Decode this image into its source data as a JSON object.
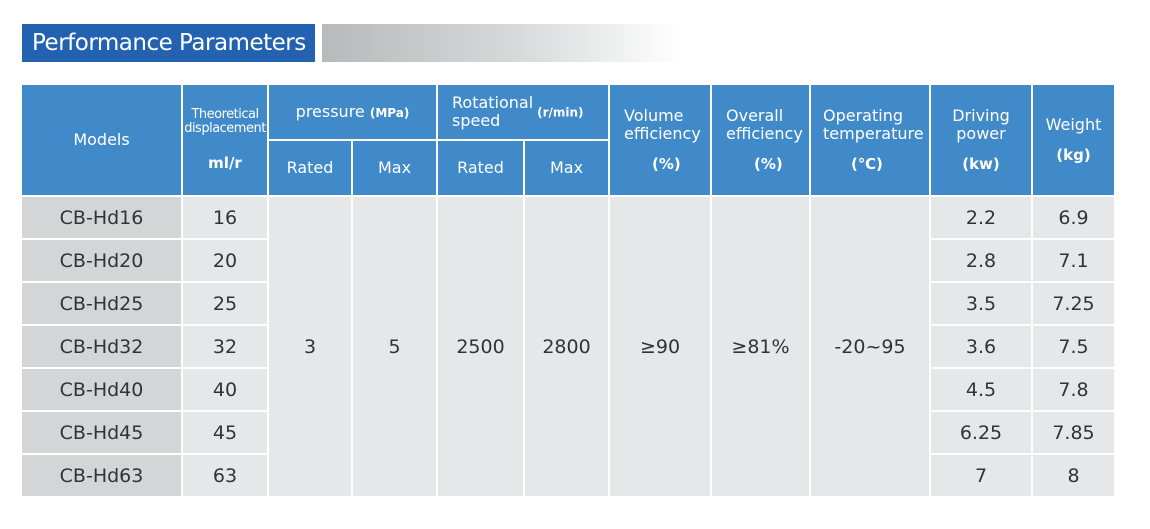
{
  "title": "Performance Parameters",
  "colors": {
    "header": "#418ac9",
    "title_bg": "#2262b0",
    "cell": "#e6e7e8",
    "model_cell": "#d4d5d6"
  },
  "headers": {
    "models": "Models",
    "displacement": "Theoretical displacement",
    "displacement_unit": "ml/r",
    "pressure": "pressure",
    "pressure_unit": "(MPa)",
    "speed": "Rotational speed",
    "speed_unit": "(r/min)",
    "rated": "Rated",
    "max": "Max",
    "volume_eff": "Volume efficiency",
    "volume_eff_unit": "(%)",
    "overall_eff": "Overall efficiency",
    "overall_eff_unit": "(%)",
    "temp": "Operating temperature",
    "temp_unit": "(℃)",
    "power": "Driving power",
    "power_unit": "(kw)",
    "weight": "Weight",
    "weight_unit": "(kg)"
  },
  "shared": {
    "pressure_rated": "3",
    "pressure_max": "5",
    "speed_rated": "2500",
    "speed_max": "2800",
    "volume_eff": "≥90",
    "overall_eff": "≥81%",
    "temp": "-20~95"
  },
  "rows": [
    {
      "model": "CB-Hd16",
      "disp": "16",
      "power": "2.2",
      "weight": "6.9"
    },
    {
      "model": "CB-Hd20",
      "disp": "20",
      "power": "2.8",
      "weight": "7.1"
    },
    {
      "model": "CB-Hd25",
      "disp": "25",
      "power": "3.5",
      "weight": "7.25"
    },
    {
      "model": "CB-Hd32",
      "disp": "32",
      "power": "3.6",
      "weight": "7.5"
    },
    {
      "model": "CB-Hd40",
      "disp": "40",
      "power": "4.5",
      "weight": "7.8"
    },
    {
      "model": "CB-Hd45",
      "disp": "45",
      "power": "6.25",
      "weight": "7.85"
    },
    {
      "model": "CB-Hd63",
      "disp": "63",
      "power": "7",
      "weight": "8"
    }
  ]
}
